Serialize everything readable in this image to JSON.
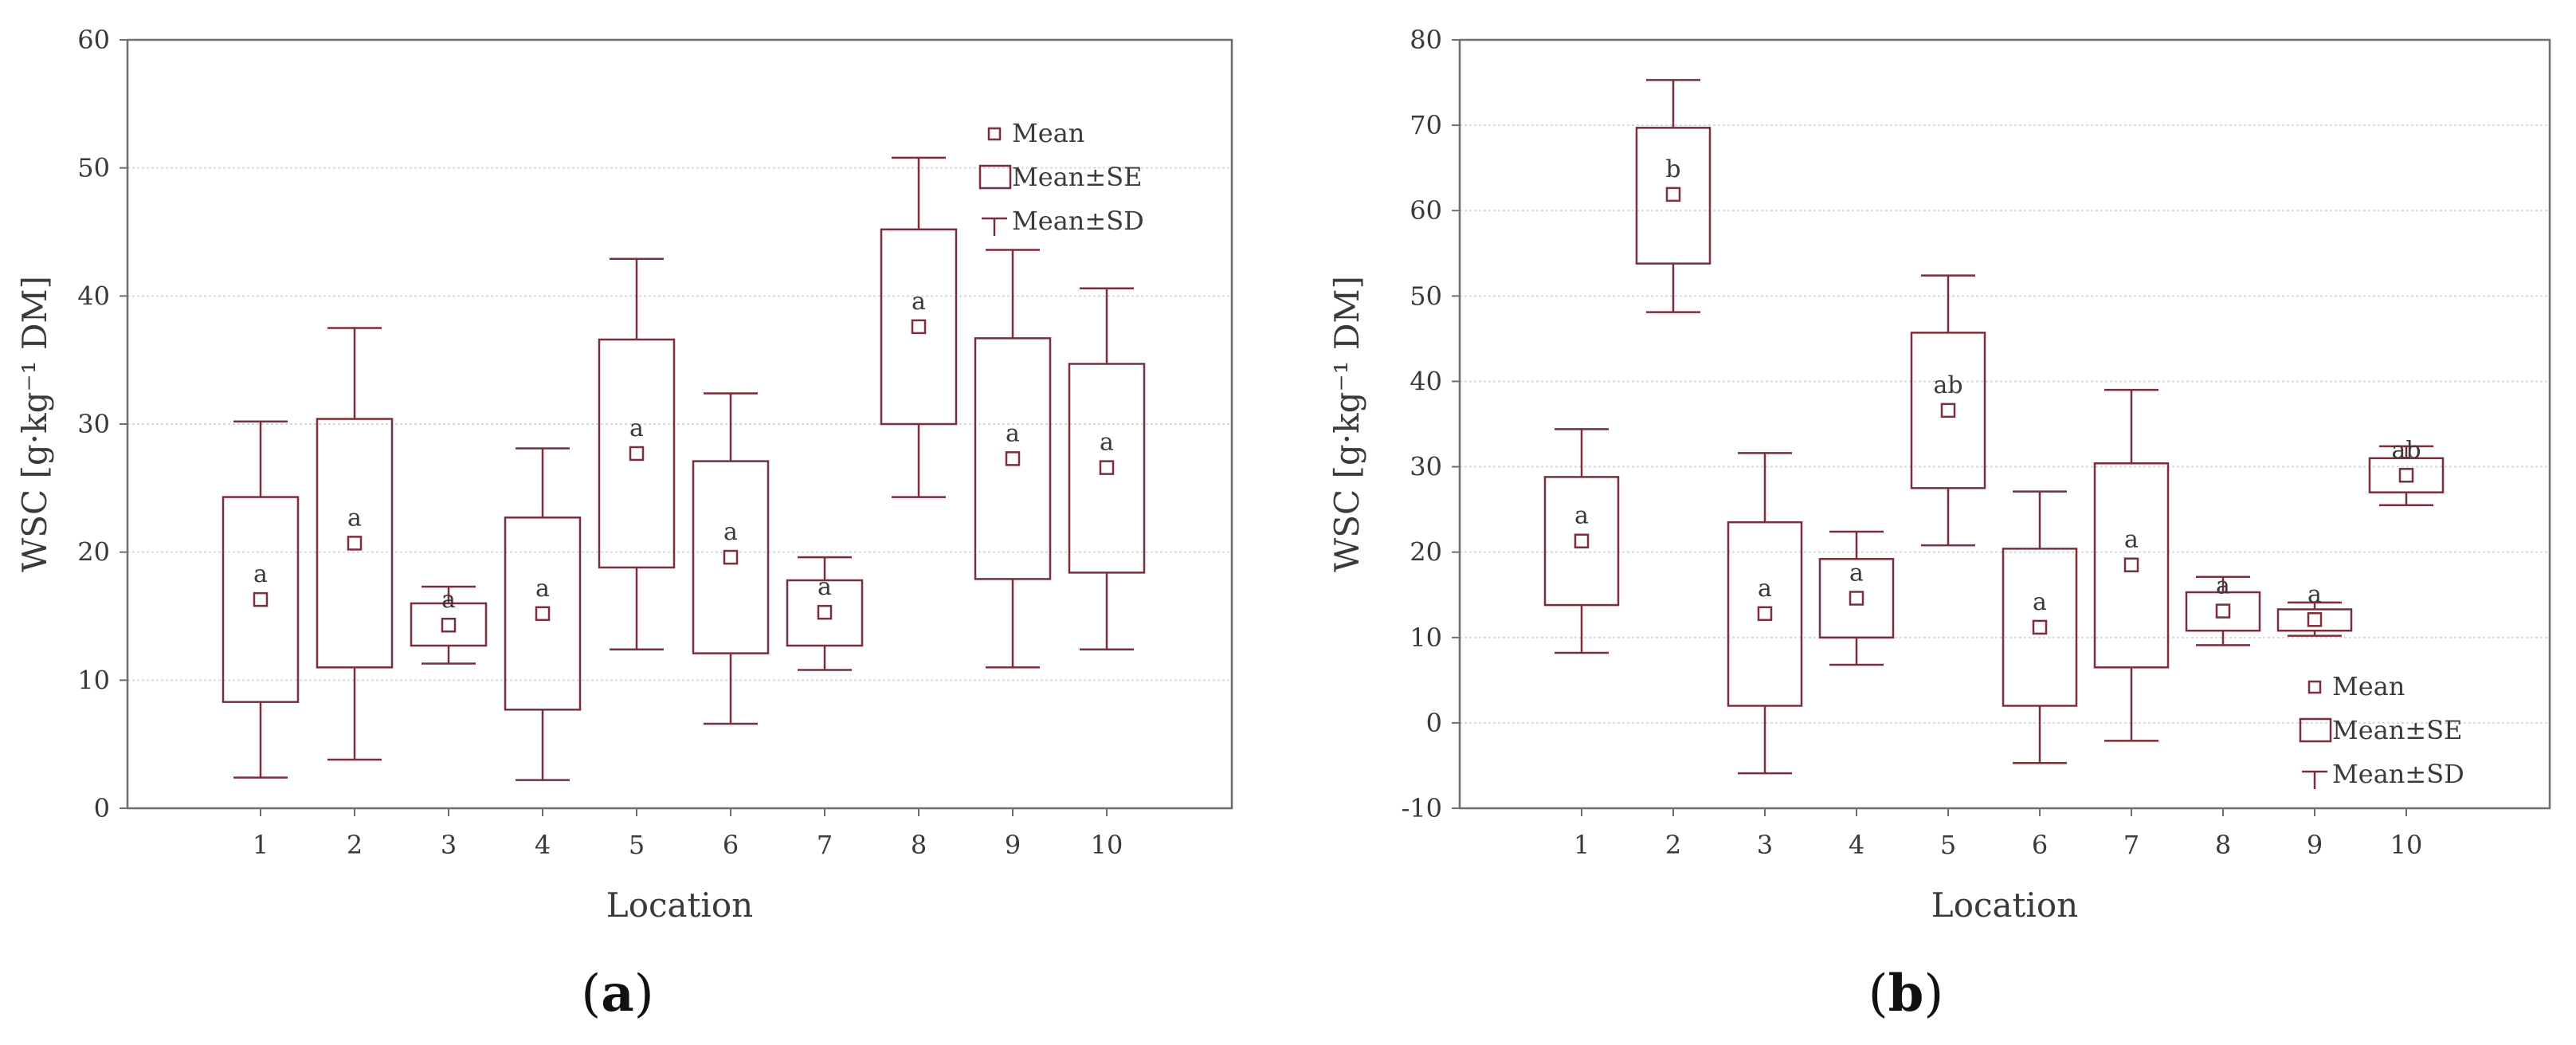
{
  "colors": {
    "box": "#7a2f3a",
    "grid": "#d9d9d9",
    "frame": "#6e6e6e",
    "text": "#3a3a3a"
  },
  "chart_data": [
    {
      "type": "box",
      "panel_label": "a",
      "xlabel": "Location",
      "ylabel": "WSC [g·kg⁻¹ DM]",
      "ylim": [
        0,
        60
      ],
      "yticks": [
        "0",
        "10",
        "20",
        "30",
        "40",
        "50",
        "60"
      ],
      "categories": [
        "1",
        "2",
        "3",
        "4",
        "5",
        "6",
        "7",
        "8",
        "9",
        "10"
      ],
      "mean": [
        16.3,
        20.7,
        14.3,
        15.2,
        27.7,
        19.6,
        15.3,
        37.6,
        27.3,
        26.6
      ],
      "se_low": [
        8.3,
        11.0,
        12.7,
        7.7,
        18.8,
        12.1,
        12.7,
        30.0,
        17.9,
        18.4
      ],
      "se_high": [
        24.3,
        30.4,
        16.0,
        22.7,
        36.6,
        27.1,
        17.8,
        45.2,
        36.7,
        34.7
      ],
      "sd_low": [
        2.4,
        3.8,
        11.3,
        2.2,
        12.4,
        6.6,
        10.8,
        24.3,
        11.0,
        12.4
      ],
      "sd_high": [
        30.2,
        37.5,
        17.3,
        28.1,
        42.9,
        32.4,
        19.6,
        50.8,
        43.6,
        40.6
      ],
      "group_letters": [
        "a",
        "a",
        "a",
        "a",
        "a",
        "a",
        "a",
        "a",
        "a",
        "a"
      ],
      "legend": {
        "position": "top-right",
        "items": [
          "Mean",
          "Mean±SE",
          "Mean±SD"
        ]
      },
      "grid": true
    },
    {
      "type": "box",
      "panel_label": "b",
      "xlabel": "Location",
      "ylabel": "WSC [g·kg⁻¹ DM]",
      "ylim": [
        -10,
        80
      ],
      "yticks": [
        "-10",
        "0",
        "10",
        "20",
        "30",
        "40",
        "50",
        "60",
        "70",
        "80"
      ],
      "categories": [
        "1",
        "2",
        "3",
        "4",
        "5",
        "6",
        "7",
        "8",
        "9",
        "10"
      ],
      "mean": [
        21.3,
        61.9,
        12.8,
        14.6,
        36.6,
        11.2,
        18.5,
        13.1,
        12.1,
        29.0
      ],
      "se_low": [
        13.8,
        53.8,
        2.0,
        10.0,
        27.5,
        2.0,
        6.5,
        10.8,
        10.8,
        27.0
      ],
      "se_high": [
        28.8,
        69.7,
        23.5,
        19.2,
        45.7,
        20.4,
        30.4,
        15.3,
        13.3,
        31.0
      ],
      "sd_low": [
        8.2,
        48.1,
        -5.9,
        6.8,
        20.8,
        -4.7,
        -2.1,
        9.1,
        10.2,
        25.5
      ],
      "sd_high": [
        34.4,
        75.3,
        31.6,
        22.4,
        52.4,
        27.1,
        39.0,
        17.1,
        14.1,
        32.4
      ],
      "group_letters": [
        "a",
        "b",
        "a",
        "a",
        "ab",
        "a",
        "a",
        "a",
        "a",
        "ab"
      ],
      "legend": {
        "position": "bottom-right",
        "items": [
          "Mean",
          "Mean±SE",
          "Mean±SD"
        ]
      },
      "grid": true
    }
  ]
}
